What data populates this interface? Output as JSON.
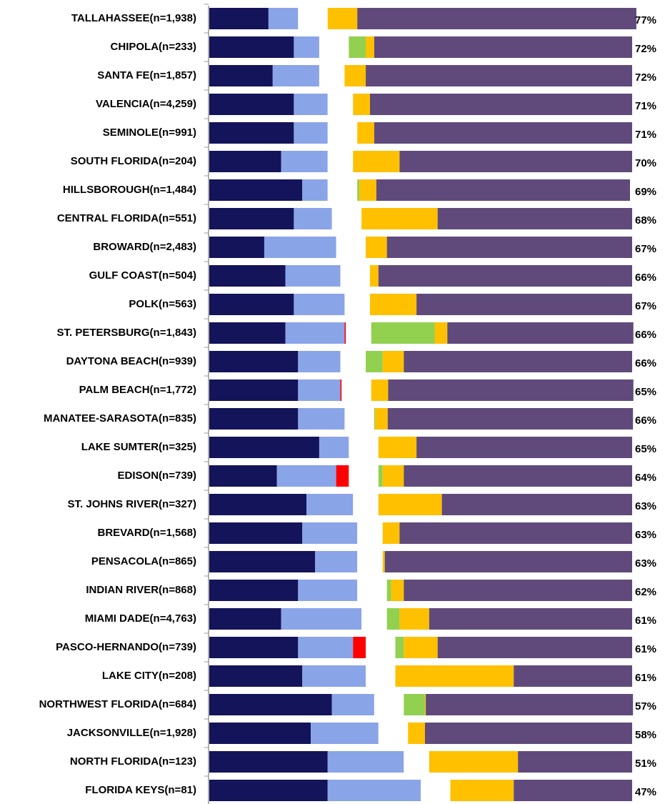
{
  "chart_data": {
    "type": "stacked-bar-horizontal",
    "categories": [
      "TALLAHASSEE(n=1,938)",
      "CHIPOLA(n=233)",
      "SANTA FE(n=1,857)",
      "VALENCIA(n=4,259)",
      "SEMINOLE(n=991)",
      "SOUTH FLORIDA(n=204)",
      "HILLSBOROUGH(n=1,484)",
      "CENTRAL FLORIDA(n=551)",
      "BROWARD(n=2,483)",
      "GULF COAST(n=504)",
      "POLK(n=563)",
      "ST. PETERSBURG(n=1,843)",
      "DAYTONA BEACH(n=939)",
      "PALM BEACH(n=1,772)",
      "MANATEE-SARASOTA(n=835)",
      "LAKE SUMTER(n=325)",
      "EDISON(n=739)",
      "ST. JOHNS RIVER(n=327)",
      "BREVARD(n=1,568)",
      "PENSACOLA(n=865)",
      "INDIAN RIVER(n=868)",
      "MIAMI DADE(n=4,763)",
      "PASCO-HERNANDO(n=739)",
      "LAKE CITY(n=208)",
      "NORTHWEST FLORIDA(n=684)",
      "JACKSONVILLE(n=1,928)",
      "NORTH FLORIDA(n=123)",
      "FLORIDA KEYS(n=81)"
    ],
    "row_labels": [
      "77%",
      "72%",
      "72%",
      "71%",
      "71%",
      "70%",
      "69%",
      "68%",
      "67%",
      "66%",
      "67%",
      "66%",
      "66%",
      "65%",
      "66%",
      "65%",
      "64%",
      "63%",
      "63%",
      "63%",
      "62%",
      "61%",
      "61%",
      "61%",
      "57%",
      "58%",
      "51%",
      "47%"
    ],
    "xlim": [
      0,
      100
    ],
    "series": [
      {
        "color": "#14145a",
        "values": [
          14,
          20,
          15,
          20,
          20,
          17,
          22,
          20,
          13,
          18,
          20,
          18,
          21,
          21,
          21,
          26,
          16,
          23,
          22,
          25,
          21,
          17,
          21,
          22,
          29,
          24,
          28,
          28
        ]
      },
      {
        "color": "#8aa4e8",
        "values": [
          7,
          6,
          11,
          8,
          8,
          11,
          6,
          9,
          17,
          13,
          12,
          14,
          10,
          10,
          11,
          7,
          14,
          11,
          13,
          10,
          14,
          19,
          13,
          15,
          10,
          16,
          18,
          22
        ]
      },
      {
        "color": "#ff0000",
        "values": [
          0,
          0,
          0,
          0,
          0,
          0,
          0,
          0,
          0,
          0,
          0,
          0.3,
          0,
          0.3,
          0,
          0,
          3,
          0,
          0,
          0,
          0,
          0,
          3,
          0,
          0,
          0,
          0,
          0
        ]
      },
      {
        "color": "#ffffff",
        "values": [
          7,
          7,
          6,
          6,
          7,
          6,
          7,
          7,
          7,
          7,
          6,
          6,
          6,
          7,
          7,
          7,
          7,
          6,
          6,
          6,
          7,
          6,
          7,
          7,
          7,
          7,
          6,
          7
        ]
      },
      {
        "color": "#92d050",
        "values": [
          0,
          4,
          0,
          0,
          0,
          0,
          0.5,
          0,
          0,
          0,
          0,
          15,
          4,
          0,
          0.2,
          0,
          1,
          0,
          0,
          0,
          1,
          3,
          2,
          0,
          5,
          0,
          0,
          0
        ]
      },
      {
        "color": "#ffc000",
        "values": [
          7,
          2,
          5,
          4,
          4,
          11,
          4,
          18,
          5,
          2,
          11,
          3,
          5,
          4,
          3,
          9,
          5,
          15,
          4,
          0.5,
          3,
          7,
          8,
          28,
          0.2,
          4,
          21,
          15
        ]
      },
      {
        "color": "#604a7b",
        "values": [
          66,
          61,
          63,
          62,
          61,
          55,
          60,
          46,
          58,
          60,
          51,
          44,
          54,
          58,
          58,
          51,
          54,
          45,
          55,
          58.5,
          54,
          48,
          46,
          28,
          49,
          49,
          27,
          28
        ]
      }
    ]
  }
}
